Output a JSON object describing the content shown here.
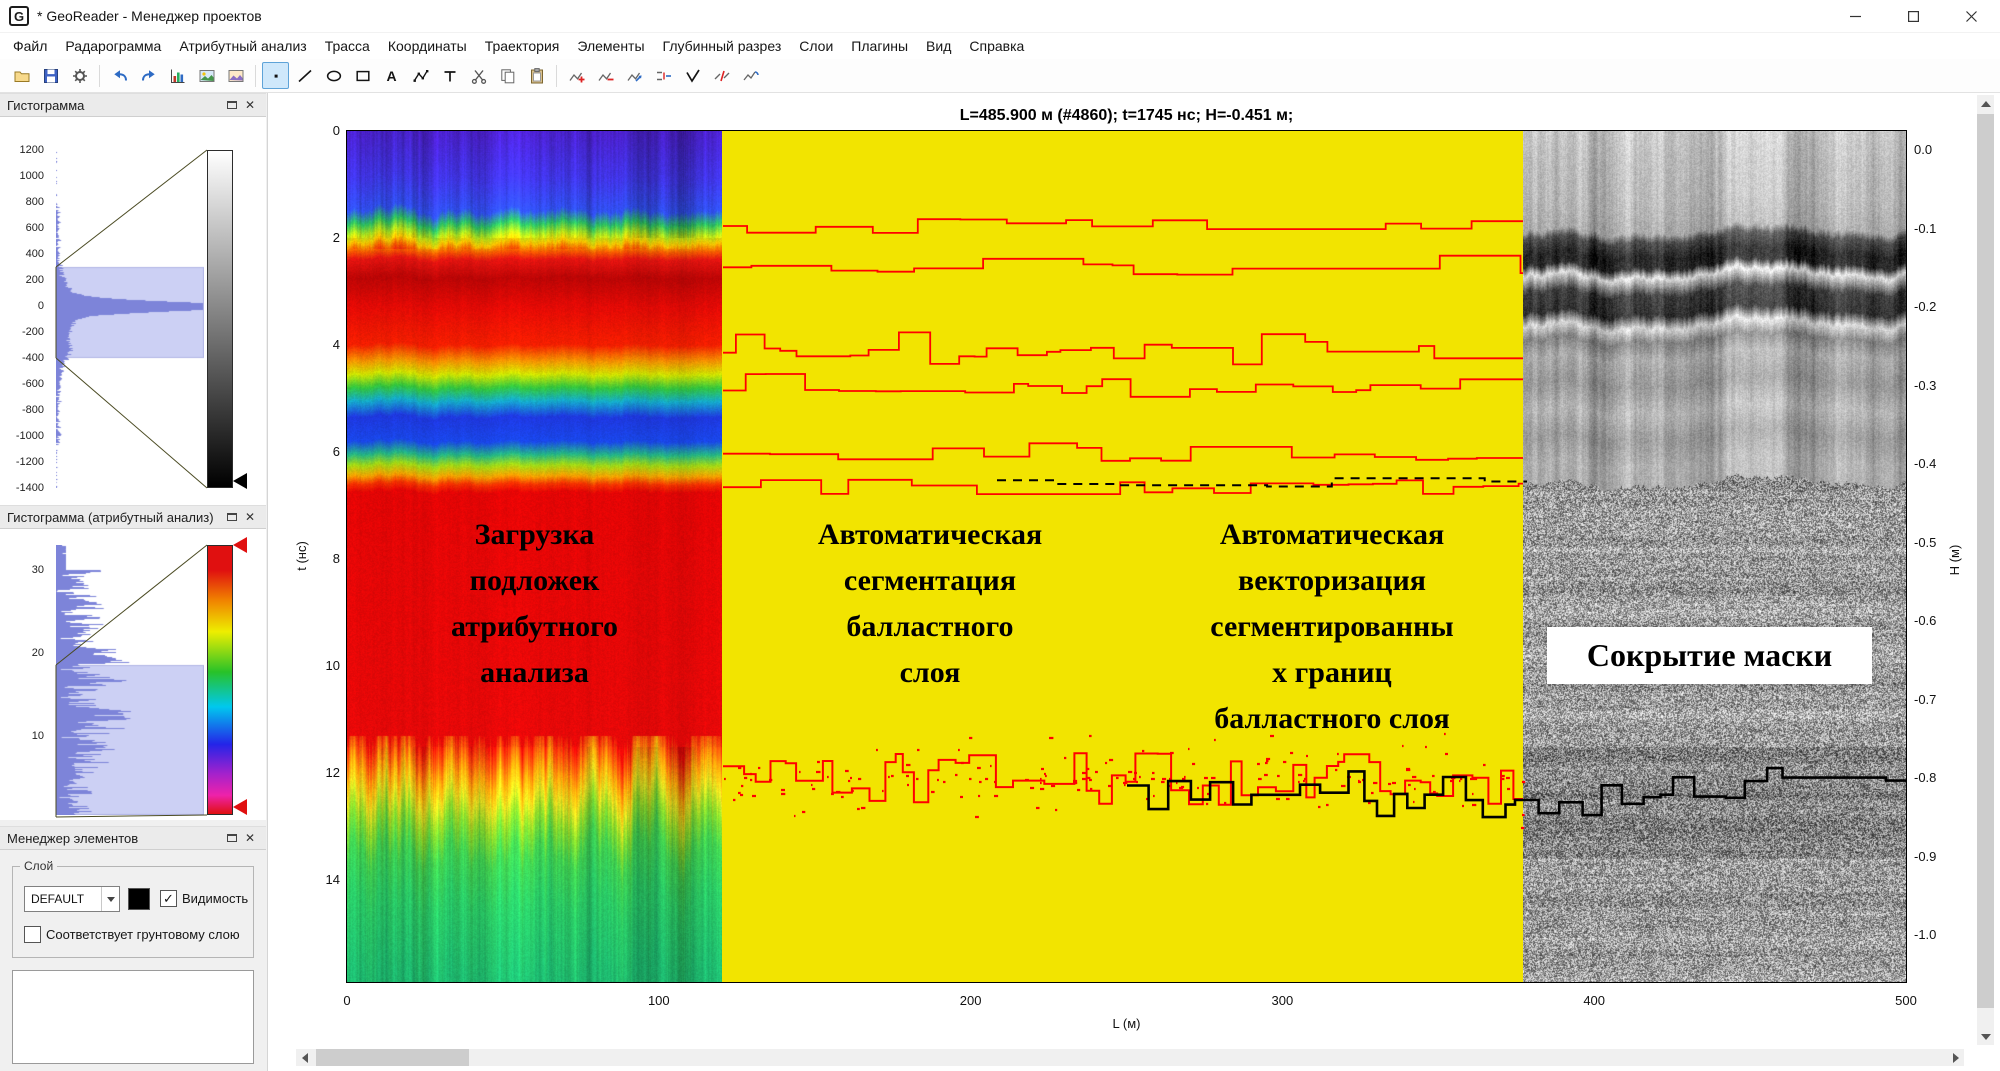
{
  "window": {
    "logo_letter": "G",
    "title": "* GeoReader - Менеджер проектов"
  },
  "menubar": {
    "items": [
      "Файл",
      "Радарограмма",
      "Атрибутный анализ",
      "Трасса",
      "Координаты",
      "Траектория",
      "Элементы",
      "Глубинный разрез",
      "Слои",
      "Плагины",
      "Вид",
      "Справка"
    ]
  },
  "toolbar": {
    "text_tool_label": "A",
    "icons": [
      "open-folder-icon",
      "save-icon",
      "settings-gear-icon",
      "undo-icon",
      "redo-icon",
      "histogram-chart-icon",
      "radargram-image-icon",
      "map-image-icon",
      "point-tool-icon",
      "line-tool-icon",
      "ellipse-tool-icon",
      "rectangle-tool-icon",
      "text-tool-icon",
      "polyline-tool-icon",
      "tee-tool-icon",
      "cut-icon",
      "copy-icon",
      "paste-icon",
      "add-vertex-icon",
      "remove-vertex-icon",
      "move-vertex-icon",
      "merge-lines-icon",
      "check-tool-icon",
      "split-line-icon",
      "join-lines-icon"
    ]
  },
  "sidebar": {
    "histogram_panel": {
      "title": "Гистограмма",
      "yticks": [
        "1200",
        "1000",
        "800",
        "600",
        "400",
        "200",
        "0",
        "-200",
        "-400",
        "-600",
        "-800",
        "-1000",
        "-1200",
        "-1400"
      ]
    },
    "attribute_histogram_panel": {
      "title": "Гистограмма (атрибутный анализ)",
      "yticks": [
        "30",
        "20",
        "10"
      ]
    },
    "element_manager_panel": {
      "title": "Менеджер элементов",
      "layer_group_label": "Слой",
      "layer_select_value": "DEFAULT",
      "visibility_checkbox_label": "Видимость",
      "visibility_checked": "✓",
      "ground_checkbox_label": "Соответствует грунтовому слою"
    }
  },
  "plot": {
    "header": "L=485.900 м (#4860); t=1745 нс; H=-0.451 м;",
    "y_left_label": "t (нс)",
    "y_left_ticks": [
      "0",
      "2",
      "4",
      "6",
      "8",
      "10",
      "12",
      "14"
    ],
    "y_right_label": "H (м)",
    "y_right_ticks": [
      "0.0",
      "-0.1",
      "-0.2",
      "-0.3",
      "-0.4",
      "-0.5",
      "-0.6",
      "-0.7",
      "-0.8",
      "-0.9",
      "-1.0"
    ],
    "x_label": "L (м)",
    "x_ticks": [
      "0",
      "100",
      "200",
      "300",
      "400",
      "500"
    ],
    "annotations": {
      "attribute_loading": "Загрузка\nподложек\nатрибутного\nанализа",
      "segmentation": "Автоматическая\nсегментация\nбалластного\nслоя",
      "vectorization": "Автоматическая\nвекторизация\nсегментированны\nх границ\nбалластного слоя",
      "mask_hiding": "Сокрытие маски"
    },
    "colors": {
      "yellow_mask": "#f2e400",
      "segmentation_line": "#ff0000",
      "vector_line": "#000000"
    }
  }
}
